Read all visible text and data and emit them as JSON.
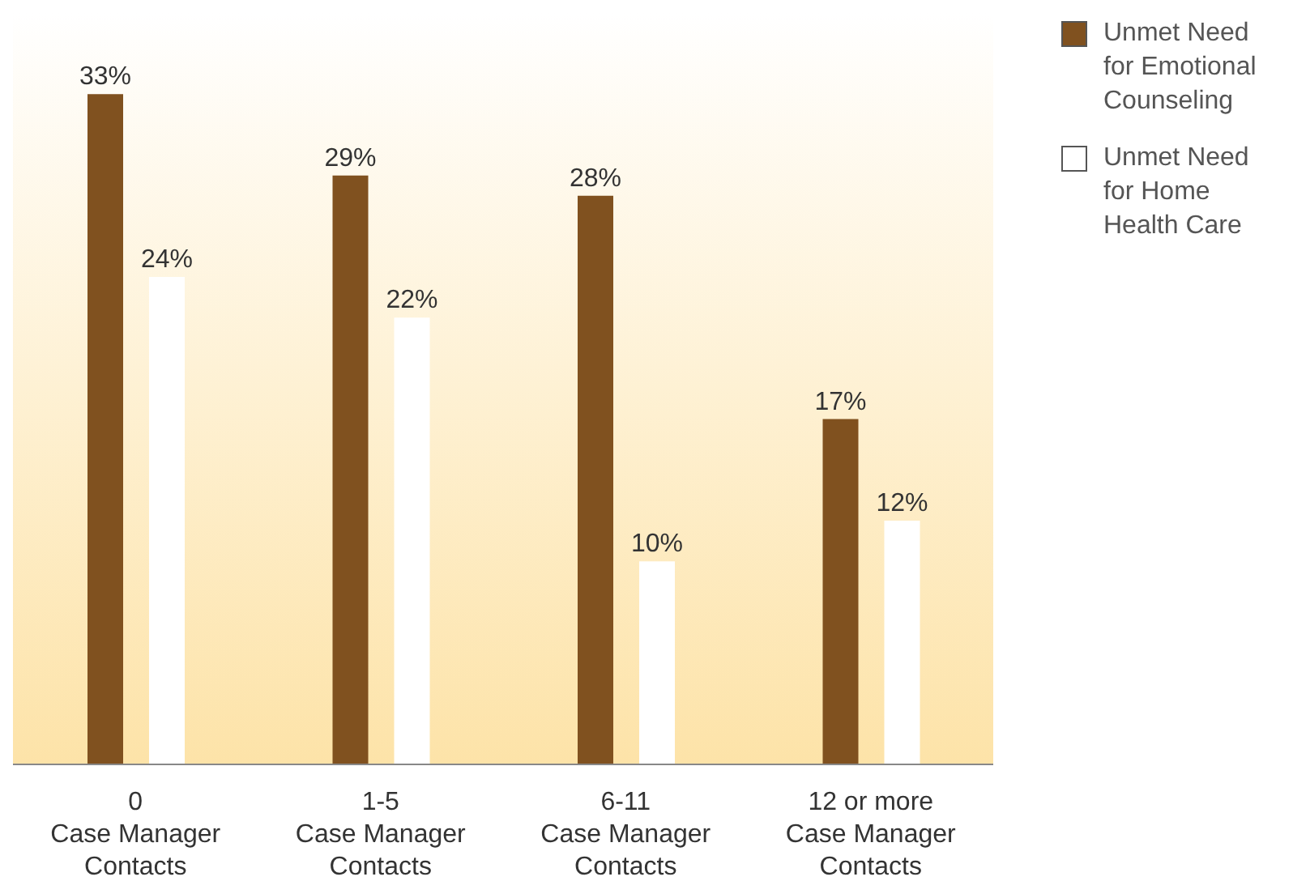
{
  "chart_data": {
    "type": "bar",
    "categories": [
      "0\nCase Manager\nContacts",
      "1-5\nCase Manager\nContacts",
      "6-11\nCase Manager\nContacts",
      "12 or more\nCase Manager\nContacts"
    ],
    "series": [
      {
        "name": "Unmet Need for Emotional Counseling",
        "color": "#80511f",
        "values": [
          33,
          29,
          28,
          17
        ],
        "value_labels": [
          "33%",
          "29%",
          "28%",
          "17%"
        ]
      },
      {
        "name": "Unmet Need for Home Health Care",
        "color": "#ffffff",
        "values": [
          24,
          22,
          10,
          12
        ],
        "value_labels": [
          "24%",
          "22%",
          "10%",
          "12%"
        ]
      }
    ],
    "ylim": [
      0,
      37
    ],
    "legend": "top right",
    "tick_labels": "x"
  }
}
